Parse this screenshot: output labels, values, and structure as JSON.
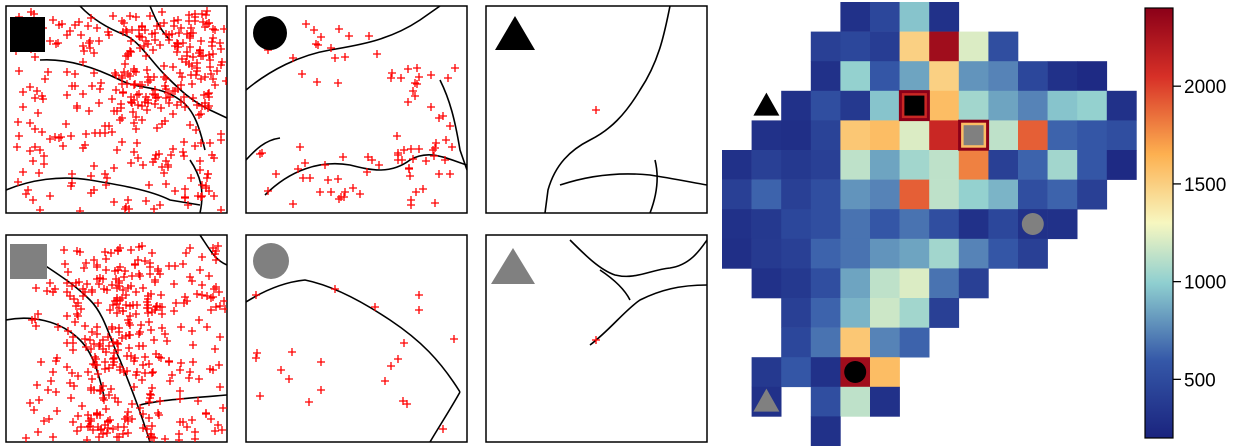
{
  "chart_data": [
    {
      "type": "scatter",
      "panel": "black-square",
      "marker": "plus",
      "marker_color": "#ff0000",
      "symbol": "square",
      "symbol_color": "#000000",
      "density": "high"
    },
    {
      "type": "scatter",
      "panel": "black-circle",
      "marker": "plus",
      "marker_color": "#ff0000",
      "symbol": "circle",
      "symbol_color": "#000000",
      "density": "medium"
    },
    {
      "type": "scatter",
      "panel": "black-triangle",
      "marker": "plus",
      "marker_color": "#ff0000",
      "symbol": "triangle",
      "symbol_color": "#000000",
      "density": "single"
    },
    {
      "type": "scatter",
      "panel": "gray-square",
      "marker": "plus",
      "marker_color": "#ff0000",
      "symbol": "square",
      "symbol_color": "#808080",
      "density": "high"
    },
    {
      "type": "scatter",
      "panel": "gray-circle",
      "marker": "plus",
      "marker_color": "#ff0000",
      "symbol": "circle",
      "symbol_color": "#808080",
      "density": "low"
    },
    {
      "type": "scatter",
      "panel": "gray-triangle",
      "marker": "plus",
      "marker_color": "#ff0000",
      "symbol": "triangle",
      "symbol_color": "#808080",
      "density": "single"
    },
    {
      "type": "heatmap",
      "colorbar": {
        "min": 200,
        "max": 2400,
        "ticks": [
          "500",
          "1000",
          "1500",
          "2000"
        ],
        "tick_values": [
          500,
          1000,
          1500,
          2000
        ]
      },
      "colors": [
        "#1a237e",
        "#3558a8",
        "#8fcfd0",
        "#f7f7c0",
        "#fdb050",
        "#d73027",
        "#8b0018"
      ],
      "rows": [
        [
          null,
          null,
          null,
          null,
          300,
          450,
          900,
          300,
          null,
          null,
          null,
          null,
          null,
          null,
          null
        ],
        [
          null,
          null,
          null,
          400,
          450,
          380,
          1500,
          2300,
          1200,
          500,
          null,
          null,
          null,
          null,
          null
        ],
        [
          null,
          null,
          null,
          300,
          950,
          550,
          800,
          1500,
          750,
          700,
          450,
          300,
          250,
          null,
          null
        ],
        [
          null,
          null,
          300,
          500,
          350,
          900,
          2100,
          1600,
          1000,
          800,
          700,
          900,
          950,
          300,
          null
        ],
        [
          null,
          300,
          280,
          420,
          1550,
          1600,
          1200,
          2100,
          1600,
          1100,
          1900,
          600,
          550,
          500,
          null
        ],
        [
          300,
          400,
          350,
          400,
          1100,
          800,
          1000,
          1100,
          1800,
          400,
          600,
          1000,
          550,
          250,
          null
        ],
        [
          400,
          600,
          400,
          500,
          750,
          700,
          1900,
          1100,
          950,
          850,
          500,
          600,
          400,
          null,
          null
        ],
        [
          300,
          350,
          450,
          500,
          650,
          550,
          650,
          500,
          300,
          450,
          300,
          300,
          null,
          null,
          null
        ],
        [
          280,
          360,
          400,
          600,
          650,
          750,
          800,
          1000,
          700,
          550,
          400,
          null,
          null,
          null,
          null
        ],
        [
          null,
          300,
          350,
          500,
          800,
          1100,
          1200,
          650,
          400,
          null,
          null,
          null,
          null,
          null,
          null
        ],
        [
          null,
          null,
          400,
          600,
          850,
          1150,
          1000,
          400,
          null,
          null,
          null,
          null,
          null,
          null,
          null
        ],
        [
          null,
          null,
          450,
          650,
          1550,
          700,
          600,
          null,
          null,
          null,
          null,
          null,
          null,
          null,
          null
        ],
        [
          null,
          350,
          550,
          300,
          2300,
          1600,
          null,
          null,
          null,
          null,
          null,
          null,
          null,
          null,
          null
        ],
        [
          null,
          300,
          null,
          500,
          1100,
          300,
          null,
          null,
          null,
          null,
          null,
          null,
          null,
          null,
          null
        ],
        [
          null,
          null,
          null,
          300,
          null,
          null,
          null,
          null,
          null,
          null,
          null,
          null,
          null,
          null,
          null
        ]
      ],
      "markers": [
        {
          "symbol": "square",
          "color": "#000000",
          "row": 3,
          "col": 6
        },
        {
          "symbol": "square",
          "color": "#808080",
          "row": 4,
          "col": 8
        },
        {
          "symbol": "triangle",
          "color": "#000000",
          "row": 3,
          "col": 1
        },
        {
          "symbol": "circle",
          "color": "#808080",
          "row": 7,
          "col": 10
        },
        {
          "symbol": "circle",
          "color": "#000000",
          "row": 12,
          "col": 4
        },
        {
          "symbol": "triangle",
          "color": "#808080",
          "row": 13,
          "col": 1
        }
      ]
    }
  ]
}
